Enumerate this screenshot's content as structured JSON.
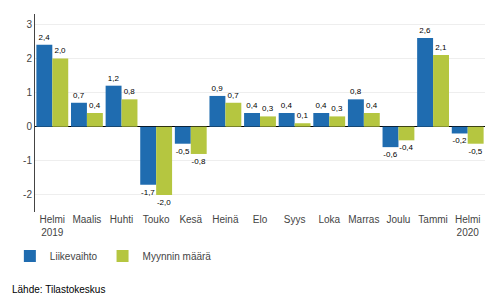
{
  "chart_data": {
    "type": "bar",
    "categories": [
      "Helmi\n2019",
      "Maalis",
      "Huhti",
      "Touko",
      "Kesä",
      "Heinä",
      "Elo",
      "Syys",
      "Loka",
      "Marras",
      "Joulu",
      "Tammi",
      "Helmi\n2020"
    ],
    "series": [
      {
        "name": "Liikevaihto",
        "color": "#1f6cb0",
        "values": [
          2.4,
          0.7,
          1.2,
          -1.7,
          -0.5,
          0.9,
          0.4,
          0.4,
          0.4,
          0.8,
          -0.6,
          2.6,
          -0.2
        ],
        "value_labels": [
          "2,4",
          "0,7",
          "1,2",
          "-1,7",
          "-0,5",
          "0,9",
          "0,4",
          "0,4",
          "0,4",
          "0,8",
          "-0,6",
          "2,6",
          "-0,2"
        ]
      },
      {
        "name": "Myynnin määrä",
        "color": "#b5c640",
        "values": [
          2.0,
          0.4,
          0.8,
          -2.0,
          -0.8,
          0.7,
          0.3,
          0.1,
          0.3,
          0.4,
          -0.4,
          2.1,
          -0.5
        ],
        "value_labels": [
          "2,0",
          "0,4",
          "0,8",
          "-2,0",
          "-0,8",
          "0,7",
          "0,3",
          "0,1",
          "0,3",
          "0,4",
          "-0,4",
          "2,1",
          "-0,5"
        ]
      }
    ],
    "ylim": [
      -2.5,
      3.3
    ],
    "yticks": [
      -2,
      -1,
      0,
      1,
      2,
      3
    ],
    "grid": true,
    "legend": "lower left",
    "data_labels": true,
    "annotations": [
      "Lähde: Tilastokeskus"
    ]
  }
}
